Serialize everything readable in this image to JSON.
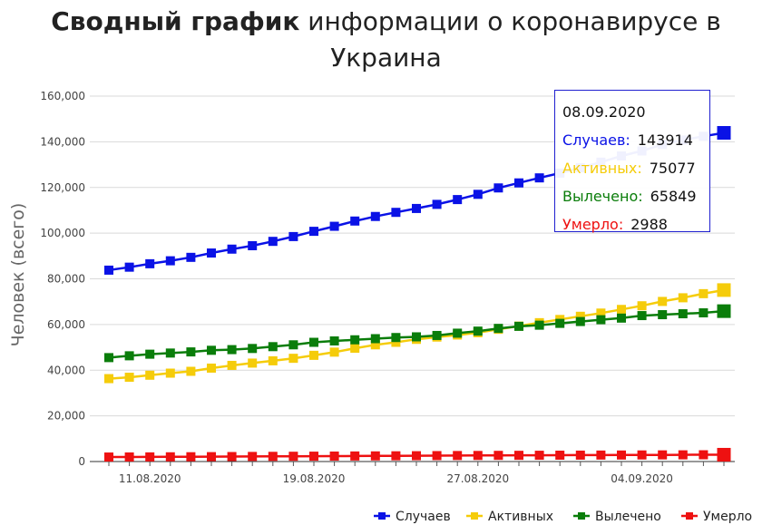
{
  "title": {
    "bold": "Сводный график",
    "rest": "информации о коронавирусе в Украина"
  },
  "colors": {
    "cases": "#0a12e6",
    "active": "#f5cc0a",
    "recovered": "#0a7d0a",
    "deaths": "#ee1111",
    "grid": "#d9d9d9"
  },
  "chart_data": {
    "type": "line",
    "title": "Сводный график информации о коронавирусе в Украина",
    "xlabel": "",
    "ylabel": "Человек (всего)",
    "ylim": [
      0,
      160000
    ],
    "yticks": [
      "0",
      "20,000",
      "40,000",
      "60,000",
      "80,000",
      "100,000",
      "120,000",
      "140,000",
      "160,000"
    ],
    "xtick_labels": [
      "11.08.2020",
      "19.08.2020",
      "27.08.2020",
      "04.09.2020"
    ],
    "x": [
      "09.08.2020",
      "10.08.2020",
      "11.08.2020",
      "12.08.2020",
      "13.08.2020",
      "14.08.2020",
      "15.08.2020",
      "16.08.2020",
      "17.08.2020",
      "18.08.2020",
      "19.08.2020",
      "20.08.2020",
      "21.08.2020",
      "22.08.2020",
      "23.08.2020",
      "24.08.2020",
      "25.08.2020",
      "26.08.2020",
      "27.08.2020",
      "28.08.2020",
      "29.08.2020",
      "30.08.2020",
      "31.08.2020",
      "01.09.2020",
      "02.09.2020",
      "03.09.2020",
      "04.09.2020",
      "05.09.2020",
      "06.09.2020",
      "07.09.2020",
      "08.09.2020"
    ],
    "grid": true,
    "legend": "bottom-right",
    "series": [
      {
        "name": "Случаев",
        "color": "#0a12e6",
        "values": [
          83800,
          85100,
          86600,
          87900,
          89400,
          91300,
          93000,
          94500,
          96400,
          98500,
          100800,
          103000,
          105300,
          107300,
          109100,
          110800,
          112600,
          114700,
          117000,
          119800,
          122000,
          124200,
          126300,
          128600,
          131100,
          133800,
          136000,
          138800,
          140800,
          142400,
          143914
        ]
      },
      {
        "name": "Активных",
        "color": "#f5cc0a",
        "values": [
          36300,
          36900,
          37800,
          38700,
          39500,
          40900,
          42100,
          43100,
          44100,
          45200,
          46500,
          47900,
          49600,
          51100,
          52200,
          53500,
          54500,
          55400,
          56400,
          57900,
          59300,
          60800,
          62200,
          63600,
          65000,
          66600,
          68200,
          70100,
          71700,
          73500,
          75077
        ]
      },
      {
        "name": "Вылечено",
        "color": "#0a7d0a",
        "values": [
          45500,
          46300,
          47000,
          47500,
          48000,
          48700,
          49000,
          49500,
          50300,
          51100,
          52200,
          52800,
          53300,
          53800,
          54300,
          54600,
          55200,
          56200,
          57100,
          58300,
          59200,
          59700,
          60500,
          61300,
          62100,
          62800,
          63900,
          64300,
          64700,
          65100,
          65849
        ]
      },
      {
        "name": "Умерло",
        "color": "#ee1111",
        "values": [
          1970,
          2000,
          2030,
          2070,
          2100,
          2140,
          2180,
          2230,
          2270,
          2310,
          2350,
          2390,
          2430,
          2470,
          2510,
          2550,
          2590,
          2630,
          2660,
          2700,
          2720,
          2750,
          2780,
          2800,
          2830,
          2850,
          2880,
          2910,
          2930,
          2960,
          2988
        ]
      }
    ]
  },
  "tooltip": {
    "date": "08.09.2020",
    "rows": [
      {
        "label": "Случаев:",
        "value": "143914",
        "color": "#0a12e6"
      },
      {
        "label": "Активных:",
        "value": "75077",
        "color": "#f5cc0a"
      },
      {
        "label": "Вылечено:",
        "value": "65849",
        "color": "#0a7d0a"
      },
      {
        "label": "Умерло:",
        "value": "2988",
        "color": "#ee1111"
      }
    ]
  }
}
